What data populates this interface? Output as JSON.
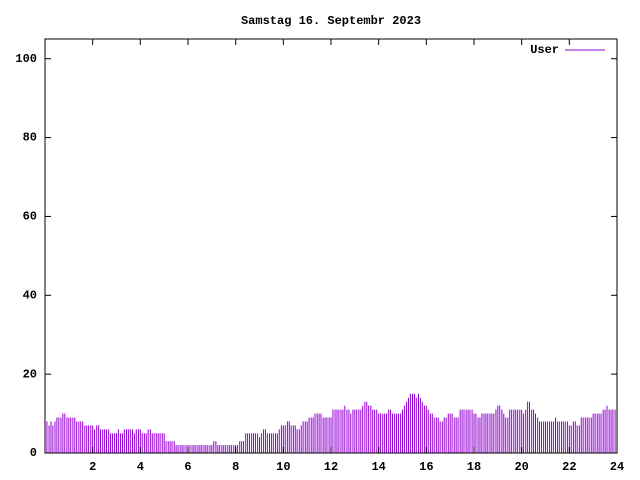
{
  "chart_data": {
    "type": "impulses",
    "title": "Samstag 16. Septembr 2023",
    "xlim": [
      0,
      24
    ],
    "xticks": [
      2,
      4,
      6,
      8,
      10,
      12,
      14,
      16,
      18,
      20,
      22,
      24
    ],
    "ylim": [
      0,
      105
    ],
    "yticks": [
      0,
      20,
      40,
      60,
      80,
      100
    ],
    "legend": "top-right",
    "x": [
      0.08,
      0.17,
      0.25,
      0.33,
      0.42,
      0.5,
      0.58,
      0.67,
      0.75,
      0.83,
      0.92,
      1,
      1.08,
      1.17,
      1.25,
      1.33,
      1.42,
      1.5,
      1.58,
      1.67,
      1.75,
      1.83,
      1.92,
      2,
      2.08,
      2.17,
      2.25,
      2.33,
      2.42,
      2.5,
      2.58,
      2.67,
      2.75,
      2.83,
      2.92,
      3,
      3.08,
      3.17,
      3.25,
      3.33,
      3.42,
      3.5,
      3.58,
      3.67,
      3.75,
      3.83,
      3.92,
      4,
      4.08,
      4.17,
      4.25,
      4.33,
      4.42,
      4.5,
      4.58,
      4.67,
      4.75,
      4.83,
      4.92,
      5,
      5.08,
      5.17,
      5.25,
      5.33,
      5.42,
      5.5,
      5.58,
      5.67,
      5.75,
      5.83,
      5.92,
      6,
      6.08,
      6.17,
      6.25,
      6.33,
      6.42,
      6.5,
      6.58,
      6.67,
      6.75,
      6.83,
      6.92,
      7,
      7.08,
      7.17,
      7.25,
      7.33,
      7.42,
      7.5,
      7.58,
      7.67,
      7.75,
      7.83,
      7.92,
      8,
      8.08,
      8.17,
      8.25,
      8.33,
      8.42,
      8.5,
      8.58,
      8.67,
      8.75,
      8.83,
      8.92,
      9,
      9.08,
      9.17,
      9.25,
      9.33,
      9.42,
      9.5,
      9.58,
      9.67,
      9.75,
      9.83,
      9.92,
      10,
      10.08,
      10.17,
      10.25,
      10.33,
      10.42,
      10.5,
      10.58,
      10.67,
      10.75,
      10.83,
      10.92,
      11,
      11.08,
      11.17,
      11.25,
      11.33,
      11.42,
      11.5,
      11.58,
      11.67,
      11.75,
      11.83,
      11.92,
      12,
      12.08,
      12.17,
      12.25,
      12.33,
      12.42,
      12.5,
      12.58,
      12.67,
      12.75,
      12.83,
      12.92,
      13,
      13.08,
      13.17,
      13.25,
      13.33,
      13.42,
      13.5,
      13.58,
      13.67,
      13.75,
      13.83,
      13.92,
      14,
      14.08,
      14.17,
      14.25,
      14.33,
      14.42,
      14.5,
      14.58,
      14.67,
      14.75,
      14.83,
      14.92,
      15,
      15.08,
      15.17,
      15.25,
      15.33,
      15.42,
      15.5,
      15.58,
      15.67,
      15.75,
      15.83,
      15.92,
      16,
      16.08,
      16.17,
      16.25,
      16.33,
      16.42,
      16.5,
      16.58,
      16.67,
      16.75,
      16.83,
      16.92,
      17,
      17.08,
      17.17,
      17.25,
      17.33,
      17.42,
      17.5,
      17.58,
      17.67,
      17.75,
      17.83,
      17.92,
      18,
      18.08,
      18.17,
      18.25,
      18.33,
      18.42,
      18.5,
      18.58,
      18.67,
      18.75,
      18.83,
      18.92,
      19,
      19.08,
      19.17,
      19.25,
      19.33,
      19.42,
      19.5,
      19.58,
      19.67,
      19.75,
      19.83,
      19.92,
      20,
      20.08,
      20.17,
      20.25,
      20.33,
      20.42,
      20.5,
      20.58,
      20.67,
      20.75,
      20.83,
      20.92,
      21,
      21.08,
      21.17,
      21.25,
      21.33,
      21.42,
      21.5,
      21.58,
      21.67,
      21.75,
      21.83,
      21.92,
      22,
      22.08,
      22.17,
      22.25,
      22.33,
      22.42,
      22.5,
      22.58,
      22.67,
      22.75,
      22.83,
      22.92,
      23,
      23.08,
      23.17,
      23.25,
      23.33,
      23.42,
      23.5,
      23.58,
      23.67,
      23.75,
      23.83,
      23.92,
      24
    ],
    "series": [
      {
        "name": "User",
        "color": "#9400d3",
        "values": [
          8,
          7,
          8,
          7,
          8,
          9,
          9,
          9,
          10,
          10,
          9,
          9,
          9,
          9,
          9,
          8,
          8,
          8,
          8,
          7,
          7,
          7,
          7,
          7,
          6,
          7,
          7,
          6,
          6,
          6,
          6,
          6,
          5,
          5,
          5,
          5,
          6,
          5,
          5,
          6,
          6,
          6,
          6,
          6,
          5,
          6,
          6,
          6,
          5,
          5,
          5,
          6,
          6,
          5,
          5,
          5,
          5,
          5,
          5,
          5,
          3,
          3,
          3,
          3,
          3,
          2,
          2,
          2,
          2,
          2,
          2,
          2,
          2,
          2,
          2,
          2,
          2,
          2,
          2,
          2,
          2,
          2,
          2,
          2,
          3,
          3,
          2,
          2,
          2,
          2,
          2,
          2,
          2,
          2,
          2,
          2,
          2,
          3,
          3,
          3,
          5,
          5,
          5,
          5,
          5,
          5,
          5,
          4,
          5,
          6,
          6,
          5,
          5,
          5,
          5,
          5,
          5,
          6,
          7,
          7,
          7,
          8,
          8,
          7,
          7,
          7,
          6,
          6,
          7,
          8,
          8,
          8,
          9,
          9,
          9,
          10,
          10,
          10,
          10,
          9,
          9,
          9,
          9,
          9,
          11,
          11,
          11,
          11,
          11,
          11,
          12,
          11,
          11,
          10,
          11,
          11,
          11,
          11,
          11,
          12,
          13,
          13,
          12,
          12,
          11,
          11,
          11,
          10,
          10,
          10,
          10,
          10,
          11,
          11,
          10,
          10,
          10,
          10,
          10,
          11,
          12,
          13,
          14,
          15,
          15,
          15,
          14,
          15,
          14,
          13,
          12,
          12,
          11,
          10,
          10,
          9,
          9,
          9,
          8,
          8,
          9,
          9,
          10,
          10,
          10,
          9,
          9,
          9,
          11,
          11,
          11,
          11,
          11,
          11,
          11,
          10,
          10,
          9,
          9,
          10,
          10,
          10,
          10,
          10,
          10,
          10,
          11,
          12,
          12,
          11,
          10,
          9,
          9,
          11,
          11,
          11,
          11,
          11,
          11,
          11,
          10,
          11,
          13,
          13,
          11,
          11,
          10,
          9,
          8,
          8,
          8,
          8,
          8,
          8,
          8,
          8,
          9,
          8,
          8,
          8,
          8,
          8,
          8,
          7,
          7,
          8,
          8,
          7,
          7,
          9,
          9,
          9,
          9,
          9,
          9,
          10,
          10,
          10,
          10,
          10,
          11,
          11,
          12,
          11,
          11,
          11,
          11,
          11
        ]
      }
    ]
  }
}
